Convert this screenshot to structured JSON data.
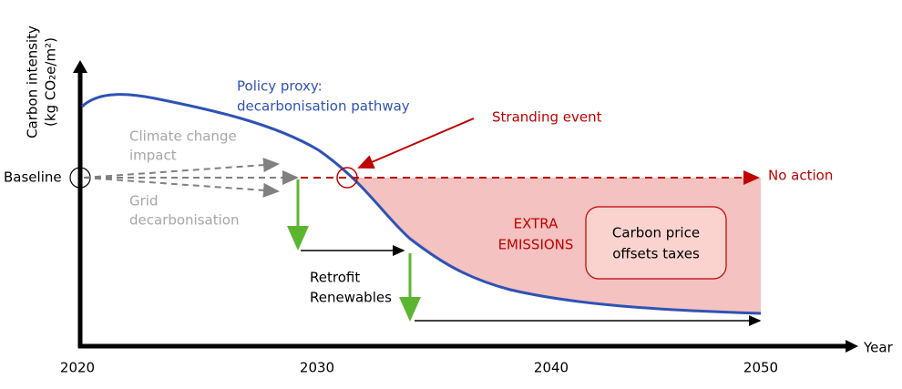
{
  "y_axis": {
    "label_line1": "Carbon intensity",
    "label_line2": "(kg CO₂e/m²)"
  },
  "x_axis": {
    "label": "Year",
    "ticks": [
      "2020",
      "2030",
      "2040",
      "2050"
    ]
  },
  "labels": {
    "baseline": "Baseline",
    "climate_line1": "Climate change",
    "climate_line2": "impact",
    "grid_line1": "Grid",
    "grid_line2": "decarbonisation",
    "policy_line1": "Policy proxy:",
    "policy_line2": "decarbonisation pathway",
    "stranding": "Stranding event",
    "no_action": "No action",
    "retrofit_line1": "Retrofit",
    "retrofit_line2": "Renewables",
    "extra_line1": "EXTRA",
    "extra_line2": "EMISSIONS",
    "carbon_line1": "Carbon price",
    "carbon_line2": "offsets taxes"
  }
}
